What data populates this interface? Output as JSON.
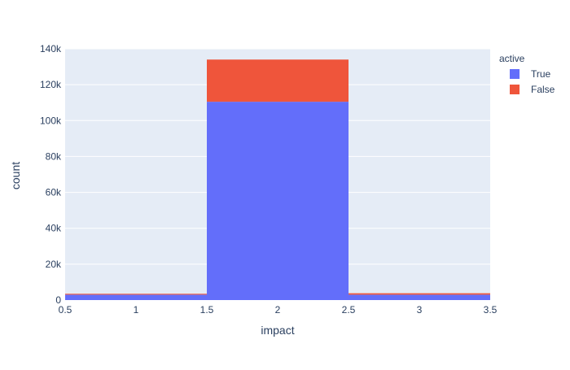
{
  "chart_data": {
    "type": "bar",
    "barmode": "stack",
    "x_bins": [
      {
        "start": 0.5,
        "end": 1.5,
        "center": 1
      },
      {
        "start": 1.5,
        "end": 2.5,
        "center": 2
      },
      {
        "start": 2.5,
        "end": 3.5,
        "center": 3
      }
    ],
    "series": [
      {
        "name": "True",
        "color": "#636efa",
        "values": [
          3000,
          110500,
          3000
        ]
      },
      {
        "name": "False",
        "color": "#ef553b",
        "values": [
          500,
          23500,
          800
        ]
      }
    ],
    "xlabel": "impact",
    "ylabel": "count",
    "xlim": [
      0.5,
      3.5
    ],
    "ylim": [
      0,
      140000
    ],
    "x_ticks": [
      {
        "value": 0.5,
        "label": "0.5"
      },
      {
        "value": 1,
        "label": "1"
      },
      {
        "value": 1.5,
        "label": "1.5"
      },
      {
        "value": 2,
        "label": "2"
      },
      {
        "value": 2.5,
        "label": "2.5"
      },
      {
        "value": 3,
        "label": "3"
      },
      {
        "value": 3.5,
        "label": "3.5"
      }
    ],
    "y_ticks": [
      {
        "value": 0,
        "label": "0"
      },
      {
        "value": 20000,
        "label": "20k"
      },
      {
        "value": 40000,
        "label": "40k"
      },
      {
        "value": 60000,
        "label": "60k"
      },
      {
        "value": 80000,
        "label": "80k"
      },
      {
        "value": 100000,
        "label": "100k"
      },
      {
        "value": 120000,
        "label": "120k"
      },
      {
        "value": 140000,
        "label": "140k"
      }
    ],
    "legend": {
      "title": "active",
      "position": "right"
    },
    "grid": true,
    "plot_bgcolor": "#e5ecf6",
    "gridcolor": "#ffffff"
  }
}
